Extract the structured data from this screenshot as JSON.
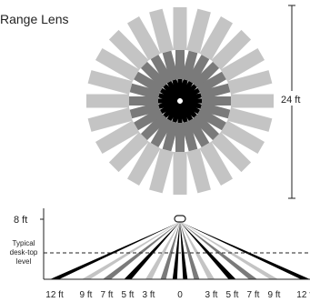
{
  "title": "Range Lens",
  "top_view": {
    "dimension_label": "24 ft",
    "ray_angles_deg": [
      0,
      15,
      30,
      45,
      60,
      75,
      90,
      105,
      120,
      135,
      150,
      165,
      180,
      195,
      210,
      225,
      240,
      255,
      270,
      285,
      300,
      315,
      330,
      345
    ],
    "segment_pattern": [
      "black",
      "dark-gray",
      "light-gray"
    ]
  },
  "side_view": {
    "height_label": "8 ft",
    "desk_level_label": [
      "Typical",
      "desk-top",
      "level"
    ],
    "axis_labels": [
      "12 ft",
      "9 ft",
      "7 ft",
      "5 ft",
      "3 ft",
      "0",
      "3 ft",
      "5 ft",
      "7 ft",
      "9 ft",
      "12 ft"
    ],
    "axis_distances_ft": [
      -12,
      -9,
      -7,
      -5,
      -3,
      0,
      3,
      5,
      7,
      9,
      12
    ]
  },
  "colors": {
    "black": "#000000",
    "dark_gray": "#7a7a7a",
    "light_gray": "#c4c4c4",
    "line": "#222222"
  }
}
